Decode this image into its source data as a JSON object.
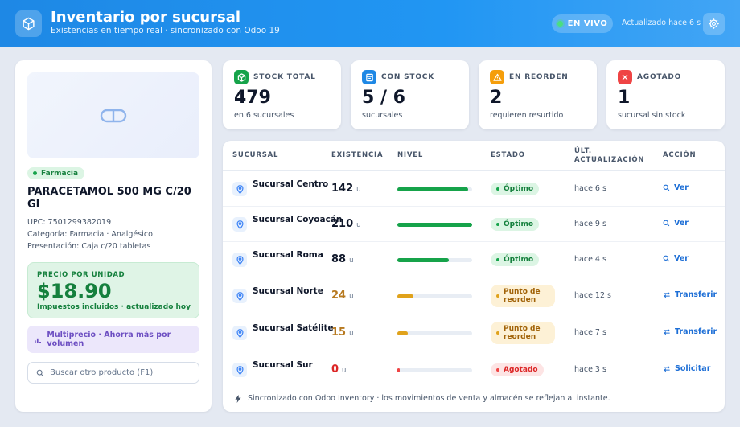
{
  "header": {
    "title": "Inventario por sucursal",
    "subtitle": "Existencias en tiempo real · sincronizado con Odoo 19",
    "live_label": "EN VIVO",
    "updated": "Actualizado hace 6 s",
    "icons": {
      "app": "box-icon",
      "settings": "gear-icon"
    }
  },
  "product": {
    "category": "Farmacia",
    "name": "PARACETAMOL 500 MG C/20 GI",
    "upc": "UPC: 7501299382019",
    "categoria": "Categoría: Farmacia · Analgésico",
    "presentacion": "Presentación: Caja c/20 tabletas",
    "price_label": "PRECIO POR UNIDAD",
    "price": "$18.90",
    "price_note": "Impuestos incluidos · actualizado hoy",
    "multiprice": "Multiprecio · Ahorra más por volumen",
    "search_placeholder": "Buscar otro producto (F1)"
  },
  "kpis": [
    {
      "label": "STOCK TOTAL",
      "value": "479",
      "sub": "en 6 sucursales",
      "color": "#16a34a",
      "icon": "box-icon"
    },
    {
      "label": "CON STOCK",
      "value": "5 / 6",
      "sub": "sucursales",
      "color": "#1e88e5",
      "icon": "store-icon"
    },
    {
      "label": "EN REORDEN",
      "value": "2",
      "sub": "requieren resurtido",
      "color": "#f59e0b",
      "icon": "warning-icon"
    },
    {
      "label": "AGOTADO",
      "value": "1",
      "sub": "sucursal sin stock",
      "color": "#ef4444",
      "icon": "close-icon"
    }
  ],
  "table": {
    "columns": [
      "SUCURSAL",
      "EXISTENCIA",
      "NIVEL",
      "ESTADO",
      "ÚLT. ACTUALIZACIÓN",
      "ACCIÓN"
    ],
    "rows": [
      {
        "branch": "Sucursal Centro",
        "qty": "142",
        "unit": "u",
        "level": 0.95,
        "status": "Óptimo",
        "status_kind": "ok",
        "updated": "hace 6 s",
        "action": "Ver",
        "action_icon": "search-icon"
      },
      {
        "branch": "Sucursal Coyoacán",
        "qty": "210",
        "unit": "u",
        "level": 1.0,
        "status": "Óptimo",
        "status_kind": "ok",
        "updated": "hace 9 s",
        "action": "Ver",
        "action_icon": "search-icon"
      },
      {
        "branch": "Sucursal Roma",
        "qty": "88",
        "unit": "u",
        "level": 0.69,
        "status": "Óptimo",
        "status_kind": "ok",
        "updated": "hace 4 s",
        "action": "Ver",
        "action_icon": "search-icon"
      },
      {
        "branch": "Sucursal Norte",
        "qty": "24",
        "unit": "u",
        "level": 0.22,
        "status": "Punto de reorden",
        "status_kind": "warn",
        "updated": "hace 12 s",
        "action": "Transferir",
        "action_icon": "transfer-icon"
      },
      {
        "branch": "Sucursal Satélite",
        "qty": "15",
        "unit": "u",
        "level": 0.14,
        "status": "Punto de reorden",
        "status_kind": "warn",
        "updated": "hace 7 s",
        "action": "Transferir",
        "action_icon": "transfer-icon"
      },
      {
        "branch": "Sucursal Sur",
        "qty": "0",
        "unit": "u",
        "level": 0.03,
        "status": "Agotado",
        "status_kind": "out",
        "updated": "hace 3 s",
        "action": "Solicitar",
        "action_icon": "transfer-icon"
      }
    ]
  },
  "footer": "Sincronizado con Odoo Inventory · los movimientos de venta y almacén se reflejan al instante.",
  "colors": {
    "ok": "#16a34a",
    "ok_bg": "#dcf5e4",
    "ok_text": "#15803d",
    "warn": "#e0a21b",
    "warn_bg": "#fdf1d6",
    "warn_text": "#a16207",
    "warn_qty": "#b7791f",
    "out": "#ef4444",
    "out_bg": "#fde4e4",
    "out_text": "#dc2626",
    "out_qty": "#dc2626",
    "accent": "#1e88e5"
  }
}
